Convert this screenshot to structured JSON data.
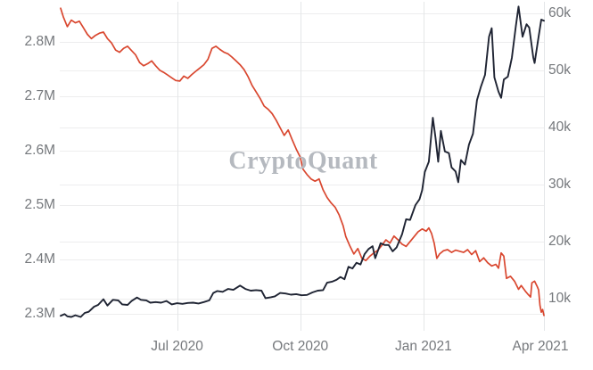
{
  "chart_data": {
    "type": "line",
    "watermark": "CryptoQuant",
    "legend": "none",
    "grid": "both-axes-horizontal-plus-vertical-quarter-lines",
    "axes": {
      "left": {
        "unit": "M",
        "range": [
          2.3,
          2.8
        ],
        "ticks": [
          {
            "label": "2.8M",
            "value": 2.8
          },
          {
            "label": "2.7M",
            "value": 2.7
          },
          {
            "label": "2.6M",
            "value": 2.6
          },
          {
            "label": "2.5M",
            "value": 2.5
          },
          {
            "label": "2.4M",
            "value": 2.4
          },
          {
            "label": "2.3M",
            "value": 2.3
          }
        ]
      },
      "right": {
        "unit": "k",
        "range": [
          10,
          60
        ],
        "ticks": [
          {
            "label": "60k",
            "value": 60
          },
          {
            "label": "50k",
            "value": 50
          },
          {
            "label": "40k",
            "value": 40
          },
          {
            "label": "30k",
            "value": 30
          },
          {
            "label": "20k",
            "value": 20
          },
          {
            "label": "10k",
            "value": 10
          }
        ]
      },
      "x": {
        "range": [
          "2020-04-05",
          "2021-04-01"
        ],
        "ticks": [
          {
            "label": "Jul 2020",
            "date": "2020-07-01"
          },
          {
            "label": "Oct 2020",
            "date": "2020-10-01"
          },
          {
            "label": "Jan 2021",
            "date": "2021-01-01"
          },
          {
            "label": "Apr 2021",
            "date": "2021-04-01"
          }
        ]
      }
    },
    "series": [
      {
        "name": "left-axis-series-red",
        "axis": "left",
        "color": "#d9472f",
        "width": 1.7,
        "points": [
          [
            "2020-04-05",
            2.862
          ],
          [
            "2020-04-07",
            2.846
          ],
          [
            "2020-04-10",
            2.828
          ],
          [
            "2020-04-13",
            2.84
          ],
          [
            "2020-04-16",
            2.835
          ],
          [
            "2020-04-19",
            2.838
          ],
          [
            "2020-04-22",
            2.826
          ],
          [
            "2020-04-25",
            2.814
          ],
          [
            "2020-04-28",
            2.806
          ],
          [
            "2020-05-01",
            2.812
          ],
          [
            "2020-05-04",
            2.816
          ],
          [
            "2020-05-07",
            2.818
          ],
          [
            "2020-05-10",
            2.806
          ],
          [
            "2020-05-13",
            2.798
          ],
          [
            "2020-05-16",
            2.785
          ],
          [
            "2020-05-19",
            2.781
          ],
          [
            "2020-05-22",
            2.788
          ],
          [
            "2020-05-25",
            2.792
          ],
          [
            "2020-05-28",
            2.784
          ],
          [
            "2020-05-31",
            2.776
          ],
          [
            "2020-06-03",
            2.762
          ],
          [
            "2020-06-06",
            2.756
          ],
          [
            "2020-06-09",
            2.76
          ],
          [
            "2020-06-12",
            2.765
          ],
          [
            "2020-06-15",
            2.756
          ],
          [
            "2020-06-18",
            2.748
          ],
          [
            "2020-06-21",
            2.744
          ],
          [
            "2020-06-24",
            2.739
          ],
          [
            "2020-06-27",
            2.734
          ],
          [
            "2020-06-30",
            2.729
          ],
          [
            "2020-07-03",
            2.728
          ],
          [
            "2020-07-06",
            2.737
          ],
          [
            "2020-07-09",
            2.733
          ],
          [
            "2020-07-12",
            2.74
          ],
          [
            "2020-07-15",
            2.746
          ],
          [
            "2020-07-18",
            2.752
          ],
          [
            "2020-07-21",
            2.758
          ],
          [
            "2020-07-24",
            2.768
          ],
          [
            "2020-07-27",
            2.788
          ],
          [
            "2020-07-30",
            2.792
          ],
          [
            "2020-08-02",
            2.786
          ],
          [
            "2020-08-05",
            2.781
          ],
          [
            "2020-08-08",
            2.778
          ],
          [
            "2020-08-11",
            2.772
          ],
          [
            "2020-08-14",
            2.765
          ],
          [
            "2020-08-17",
            2.758
          ],
          [
            "2020-08-20",
            2.749
          ],
          [
            "2020-08-23",
            2.736
          ],
          [
            "2020-08-26",
            2.72
          ],
          [
            "2020-08-29",
            2.708
          ],
          [
            "2020-09-01",
            2.696
          ],
          [
            "2020-09-04",
            2.682
          ],
          [
            "2020-09-07",
            2.676
          ],
          [
            "2020-09-10",
            2.668
          ],
          [
            "2020-09-13",
            2.656
          ],
          [
            "2020-09-16",
            2.642
          ],
          [
            "2020-09-19",
            2.628
          ],
          [
            "2020-09-22",
            2.638
          ],
          [
            "2020-09-25",
            2.62
          ],
          [
            "2020-09-28",
            2.603
          ],
          [
            "2020-10-01",
            2.588
          ],
          [
            "2020-10-03",
            2.566
          ],
          [
            "2020-10-06",
            2.556
          ],
          [
            "2020-10-09",
            2.548
          ],
          [
            "2020-10-12",
            2.544
          ],
          [
            "2020-10-15",
            2.548
          ],
          [
            "2020-10-18",
            2.528
          ],
          [
            "2020-10-21",
            2.514
          ],
          [
            "2020-10-24",
            2.504
          ],
          [
            "2020-10-27",
            2.496
          ],
          [
            "2020-10-30",
            2.482
          ],
          [
            "2020-11-02",
            2.462
          ],
          [
            "2020-11-04",
            2.442
          ],
          [
            "2020-11-07",
            2.425
          ],
          [
            "2020-11-10",
            2.41
          ],
          [
            "2020-11-13",
            2.42
          ],
          [
            "2020-11-16",
            2.402
          ],
          [
            "2020-11-19",
            2.398
          ],
          [
            "2020-11-22",
            2.406
          ],
          [
            "2020-11-25",
            2.412
          ],
          [
            "2020-11-28",
            2.417
          ],
          [
            "2020-12-01",
            2.426
          ],
          [
            "2020-12-04",
            2.436
          ],
          [
            "2020-12-07",
            2.43
          ],
          [
            "2020-12-10",
            2.443
          ],
          [
            "2020-12-13",
            2.436
          ],
          [
            "2020-12-16",
            2.428
          ],
          [
            "2020-12-19",
            2.424
          ],
          [
            "2020-12-22",
            2.433
          ],
          [
            "2020-12-25",
            2.442
          ],
          [
            "2020-12-28",
            2.451
          ],
          [
            "2020-12-31",
            2.456
          ],
          [
            "2021-01-03",
            2.452
          ],
          [
            "2021-01-05",
            2.458
          ],
          [
            "2021-01-07",
            2.448
          ],
          [
            "2021-01-09",
            2.43
          ],
          [
            "2021-01-11",
            2.402
          ],
          [
            "2021-01-13",
            2.41
          ],
          [
            "2021-01-16",
            2.416
          ],
          [
            "2021-01-19",
            2.418
          ],
          [
            "2021-01-22",
            2.413
          ],
          [
            "2021-01-25",
            2.417
          ],
          [
            "2021-01-28",
            2.415
          ],
          [
            "2021-01-31",
            2.413
          ],
          [
            "2021-02-03",
            2.418
          ],
          [
            "2021-02-06",
            2.409
          ],
          [
            "2021-02-09",
            2.416
          ],
          [
            "2021-02-12",
            2.396
          ],
          [
            "2021-02-15",
            2.403
          ],
          [
            "2021-02-18",
            2.394
          ],
          [
            "2021-02-21",
            2.388
          ],
          [
            "2021-02-24",
            2.391
          ],
          [
            "2021-02-26",
            2.384
          ],
          [
            "2021-02-28",
            2.412
          ],
          [
            "2021-03-02",
            2.406
          ],
          [
            "2021-03-04",
            2.365
          ],
          [
            "2021-03-07",
            2.369
          ],
          [
            "2021-03-10",
            2.36
          ],
          [
            "2021-03-13",
            2.345
          ],
          [
            "2021-03-15",
            2.352
          ],
          [
            "2021-03-18",
            2.342
          ],
          [
            "2021-03-20",
            2.336
          ],
          [
            "2021-03-22",
            2.331
          ],
          [
            "2021-03-23",
            2.357
          ],
          [
            "2021-03-25",
            2.36
          ],
          [
            "2021-03-27",
            2.35
          ],
          [
            "2021-03-28",
            2.344
          ],
          [
            "2021-03-29",
            2.316
          ],
          [
            "2021-03-30",
            2.303
          ],
          [
            "2021-03-31",
            2.308
          ],
          [
            "2021-04-01",
            2.297
          ]
        ]
      },
      {
        "name": "right-axis-series-dark",
        "axis": "right",
        "color": "#1f2433",
        "width": 1.9,
        "points": [
          [
            "2020-04-05",
            7.0
          ],
          [
            "2020-04-08",
            7.3
          ],
          [
            "2020-04-10",
            6.9
          ],
          [
            "2020-04-13",
            6.8
          ],
          [
            "2020-04-16",
            7.1
          ],
          [
            "2020-04-20",
            6.8
          ],
          [
            "2020-04-23",
            7.5
          ],
          [
            "2020-04-26",
            7.7
          ],
          [
            "2020-04-30",
            8.6
          ],
          [
            "2020-05-03",
            8.9
          ],
          [
            "2020-05-07",
            9.9
          ],
          [
            "2020-05-10",
            8.8
          ],
          [
            "2020-05-14",
            9.8
          ],
          [
            "2020-05-18",
            9.7
          ],
          [
            "2020-05-21",
            9.0
          ],
          [
            "2020-05-25",
            8.9
          ],
          [
            "2020-05-28",
            9.6
          ],
          [
            "2020-06-01",
            10.2
          ],
          [
            "2020-06-04",
            9.8
          ],
          [
            "2020-06-08",
            9.7
          ],
          [
            "2020-06-11",
            9.3
          ],
          [
            "2020-06-15",
            9.4
          ],
          [
            "2020-06-19",
            9.3
          ],
          [
            "2020-06-23",
            9.6
          ],
          [
            "2020-06-27",
            9.0
          ],
          [
            "2020-07-01",
            9.2
          ],
          [
            "2020-07-05",
            9.1
          ],
          [
            "2020-07-09",
            9.25
          ],
          [
            "2020-07-13",
            9.3
          ],
          [
            "2020-07-17",
            9.15
          ],
          [
            "2020-07-21",
            9.4
          ],
          [
            "2020-07-25",
            9.7
          ],
          [
            "2020-07-28",
            11.0
          ],
          [
            "2020-07-31",
            11.35
          ],
          [
            "2020-08-04",
            11.2
          ],
          [
            "2020-08-08",
            11.7
          ],
          [
            "2020-08-12",
            11.55
          ],
          [
            "2020-08-17",
            12.3
          ],
          [
            "2020-08-21",
            11.7
          ],
          [
            "2020-08-25",
            11.4
          ],
          [
            "2020-08-29",
            11.5
          ],
          [
            "2020-09-02",
            11.4
          ],
          [
            "2020-09-05",
            10.1
          ],
          [
            "2020-09-09",
            10.25
          ],
          [
            "2020-09-12",
            10.4
          ],
          [
            "2020-09-16",
            11.0
          ],
          [
            "2020-09-20",
            10.9
          ],
          [
            "2020-09-24",
            10.7
          ],
          [
            "2020-09-28",
            10.8
          ],
          [
            "2020-10-02",
            10.6
          ],
          [
            "2020-10-06",
            10.65
          ],
          [
            "2020-10-10",
            11.1
          ],
          [
            "2020-10-14",
            11.4
          ],
          [
            "2020-10-18",
            11.5
          ],
          [
            "2020-10-21",
            12.8
          ],
          [
            "2020-10-25",
            13.0
          ],
          [
            "2020-10-28",
            13.3
          ],
          [
            "2020-10-31",
            13.8
          ],
          [
            "2020-11-03",
            13.4
          ],
          [
            "2020-11-06",
            15.6
          ],
          [
            "2020-11-09",
            15.3
          ],
          [
            "2020-11-12",
            16.3
          ],
          [
            "2020-11-15",
            16.0
          ],
          [
            "2020-11-18",
            17.8
          ],
          [
            "2020-11-21",
            18.7
          ],
          [
            "2020-11-24",
            19.2
          ],
          [
            "2020-11-26",
            17.1
          ],
          [
            "2020-11-30",
            19.7
          ],
          [
            "2020-12-03",
            19.4
          ],
          [
            "2020-12-06",
            19.4
          ],
          [
            "2020-12-09",
            18.3
          ],
          [
            "2020-12-12",
            19.0
          ],
          [
            "2020-12-16",
            21.3
          ],
          [
            "2020-12-19",
            23.9
          ],
          [
            "2020-12-22",
            23.8
          ],
          [
            "2020-12-26",
            26.4
          ],
          [
            "2020-12-29",
            27.4
          ],
          [
            "2020-12-31",
            29.0
          ],
          [
            "2021-01-02",
            32.2
          ],
          [
            "2021-01-05",
            34.0
          ],
          [
            "2021-01-08",
            41.7
          ],
          [
            "2021-01-10",
            38.2
          ],
          [
            "2021-01-12",
            34.0
          ],
          [
            "2021-01-14",
            39.4
          ],
          [
            "2021-01-17",
            35.8
          ],
          [
            "2021-01-20",
            35.5
          ],
          [
            "2021-01-22",
            33.0
          ],
          [
            "2021-01-25",
            32.3
          ],
          [
            "2021-01-27",
            30.4
          ],
          [
            "2021-01-29",
            34.3
          ],
          [
            "2021-02-01",
            33.5
          ],
          [
            "2021-02-04",
            37.0
          ],
          [
            "2021-02-07",
            38.9
          ],
          [
            "2021-02-10",
            44.8
          ],
          [
            "2021-02-13",
            47.2
          ],
          [
            "2021-02-16",
            49.2
          ],
          [
            "2021-02-19",
            55.9
          ],
          [
            "2021-02-21",
            57.4
          ],
          [
            "2021-02-23",
            48.8
          ],
          [
            "2021-02-26",
            46.3
          ],
          [
            "2021-02-28",
            45.2
          ],
          [
            "2021-03-02",
            48.4
          ],
          [
            "2021-03-05",
            48.9
          ],
          [
            "2021-03-08",
            52.2
          ],
          [
            "2021-03-11",
            57.8
          ],
          [
            "2021-03-13",
            61.2
          ],
          [
            "2021-03-16",
            55.9
          ],
          [
            "2021-03-19",
            58.1
          ],
          [
            "2021-03-21",
            57.5
          ],
          [
            "2021-03-24",
            52.3
          ],
          [
            "2021-03-25",
            51.3
          ],
          [
            "2021-03-28",
            55.9
          ],
          [
            "2021-03-30",
            58.9
          ],
          [
            "2021-04-01",
            58.7
          ]
        ]
      }
    ],
    "colors": {
      "background": "#ffffff",
      "grid_horizontal": "#ededee",
      "grid_vertical": "#e4e6e8",
      "tick_text": "#75787c",
      "watermark_text": "#b5b9bf"
    }
  }
}
